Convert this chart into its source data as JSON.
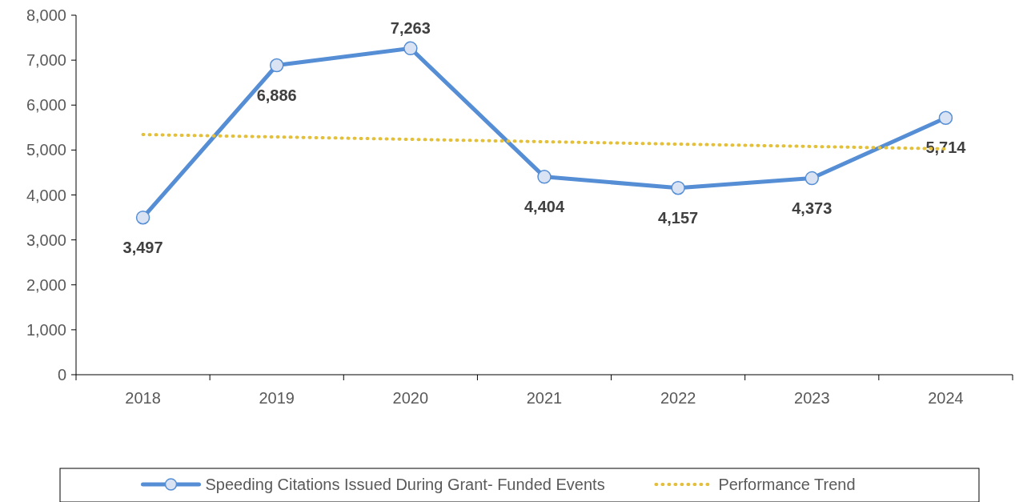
{
  "chart_data": {
    "type": "line",
    "categories": [
      "2018",
      "2019",
      "2020",
      "2021",
      "2022",
      "2023",
      "2024"
    ],
    "ylim": [
      0,
      8000
    ],
    "yticks": [
      {
        "value": 0,
        "label": "0"
      },
      {
        "value": 1000,
        "label": "1,000"
      },
      {
        "value": 2000,
        "label": "2,000"
      },
      {
        "value": 3000,
        "label": "3,000"
      },
      {
        "value": 4000,
        "label": "4,000"
      },
      {
        "value": 5000,
        "label": "5,000"
      },
      {
        "value": 6000,
        "label": "6,000"
      },
      {
        "value": 7000,
        "label": "7,000"
      },
      {
        "value": 8000,
        "label": "8,000"
      }
    ],
    "grid": false,
    "legend": "bottom",
    "series": [
      {
        "name": "Speeding Citations Issued During Grant- Funded Events",
        "color": "#558ed5",
        "marker": "circle",
        "line_style": "solid",
        "values": [
          3497,
          6886,
          7263,
          4404,
          4157,
          4373,
          5714
        ],
        "value_labels": [
          "3,497",
          "6,886",
          "7,263",
          "4,404",
          "4,157",
          "4,373",
          "5,714"
        ]
      },
      {
        "name": "Performance Trend",
        "color": "#e3bf3a",
        "marker": "none",
        "line_style": "dotted",
        "values": [
          5344,
          5291,
          5238,
          5185,
          5132,
          5079,
          5026
        ]
      }
    ]
  }
}
